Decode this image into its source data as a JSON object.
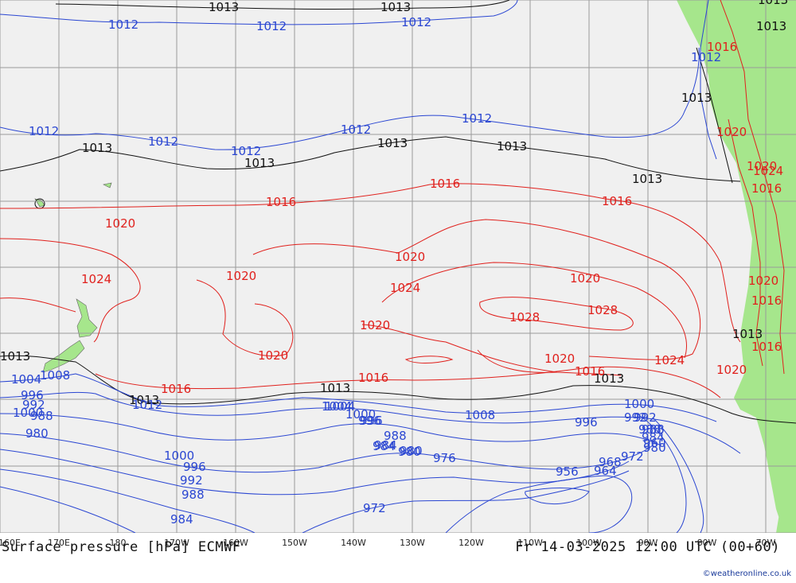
{
  "map": {
    "title": "Surface pressure [hPa] ECMWF",
    "valid_time": "Fr 14-03-2025 12:00 UTC (00+60)",
    "credit": "©weatheronline.co.uk",
    "longitude_labels": [
      "160E",
      "170E",
      "180",
      "170W",
      "160W",
      "150W",
      "140W",
      "130W",
      "120W",
      "110W",
      "100W",
      "90W",
      "80W",
      "70W"
    ],
    "colors": {
      "ocean": "#f0f0f0",
      "land": "#a6e68c",
      "grid": "#9a9a9a",
      "low_isobar": "#2a46d2",
      "mid_isobar": "#111111",
      "high_isobar": "#e0201c"
    },
    "isobar_labels": [
      {
        "value": "1013",
        "color": "mid"
      },
      {
        "value": "1013",
        "color": "mid"
      },
      {
        "value": "1013",
        "color": "mid"
      },
      {
        "value": "1012",
        "color": "low"
      },
      {
        "value": "1012",
        "color": "low"
      },
      {
        "value": "1012",
        "color": "low"
      },
      {
        "value": "1016",
        "color": "high"
      },
      {
        "value": "1013",
        "color": "mid"
      },
      {
        "value": "1012",
        "color": "low"
      },
      {
        "value": "1012",
        "color": "low"
      },
      {
        "value": "1013",
        "color": "mid"
      },
      {
        "value": "1012",
        "color": "low"
      },
      {
        "value": "1012",
        "color": "low"
      },
      {
        "value": "1013",
        "color": "mid"
      },
      {
        "value": "1012",
        "color": "low"
      },
      {
        "value": "1013",
        "color": "mid"
      },
      {
        "value": "1013",
        "color": "mid"
      },
      {
        "value": "1012",
        "color": "low"
      },
      {
        "value": "1013",
        "color": "mid"
      },
      {
        "value": "1013",
        "color": "mid"
      },
      {
        "value": "1020",
        "color": "high"
      },
      {
        "value": "1024",
        "color": "high"
      },
      {
        "value": "1016",
        "color": "high"
      },
      {
        "value": "1016",
        "color": "high"
      },
      {
        "value": "1016",
        "color": "high"
      },
      {
        "value": "1016",
        "color": "high"
      },
      {
        "value": "1020",
        "color": "high"
      },
      {
        "value": "1020",
        "color": "high"
      },
      {
        "value": "1020",
        "color": "high"
      },
      {
        "value": "1024",
        "color": "high"
      },
      {
        "value": "1024",
        "color": "high"
      },
      {
        "value": "1020",
        "color": "high"
      },
      {
        "value": "1028",
        "color": "high"
      },
      {
        "value": "1028",
        "color": "high"
      },
      {
        "value": "1020",
        "color": "high"
      },
      {
        "value": "1020",
        "color": "high"
      },
      {
        "value": "1020",
        "color": "high"
      },
      {
        "value": "1020",
        "color": "high"
      },
      {
        "value": "1016",
        "color": "high"
      },
      {
        "value": "1024",
        "color": "high"
      },
      {
        "value": "1013",
        "color": "mid"
      },
      {
        "value": "1016",
        "color": "high"
      },
      {
        "value": "1016",
        "color": "high"
      },
      {
        "value": "1013",
        "color": "mid"
      },
      {
        "value": "1016",
        "color": "high"
      },
      {
        "value": "1016",
        "color": "high"
      },
      {
        "value": "1020",
        "color": "high"
      },
      {
        "value": "1020",
        "color": "high"
      },
      {
        "value": "1013",
        "color": "mid"
      },
      {
        "value": "1013",
        "color": "mid"
      },
      {
        "value": "1013",
        "color": "mid"
      },
      {
        "value": "1008",
        "color": "low"
      },
      {
        "value": "1004",
        "color": "low"
      },
      {
        "value": "1000",
        "color": "low"
      },
      {
        "value": "996",
        "color": "low"
      },
      {
        "value": "992",
        "color": "low"
      },
      {
        "value": "988",
        "color": "low"
      },
      {
        "value": "980",
        "color": "low"
      },
      {
        "value": "1012",
        "color": "low"
      },
      {
        "value": "1004",
        "color": "low"
      },
      {
        "value": "1000",
        "color": "low"
      },
      {
        "value": "996",
        "color": "low"
      },
      {
        "value": "1008",
        "color": "low"
      },
      {
        "value": "1000",
        "color": "low"
      },
      {
        "value": "996",
        "color": "low"
      },
      {
        "value": "992",
        "color": "low"
      },
      {
        "value": "988",
        "color": "low"
      },
      {
        "value": "984",
        "color": "low"
      },
      {
        "value": "980",
        "color": "low"
      },
      {
        "value": "988",
        "color": "low"
      },
      {
        "value": "984",
        "color": "low"
      },
      {
        "value": "980",
        "color": "low"
      },
      {
        "value": "976",
        "color": "low"
      },
      {
        "value": "972",
        "color": "low"
      },
      {
        "value": "968",
        "color": "low"
      },
      {
        "value": "964",
        "color": "low"
      },
      {
        "value": "956",
        "color": "low"
      },
      {
        "value": "960",
        "color": "low"
      },
      {
        "value": "1000",
        "color": "low"
      },
      {
        "value": "996",
        "color": "low"
      },
      {
        "value": "992",
        "color": "low"
      },
      {
        "value": "988",
        "color": "low"
      },
      {
        "value": "984",
        "color": "low"
      },
      {
        "value": "972",
        "color": "low"
      },
      {
        "value": "1004",
        "color": "low"
      },
      {
        "value": "996",
        "color": "low"
      },
      {
        "value": "992",
        "color": "low"
      },
      {
        "value": "988",
        "color": "low"
      },
      {
        "value": "984",
        "color": "low"
      },
      {
        "value": "980",
        "color": "low"
      }
    ]
  }
}
